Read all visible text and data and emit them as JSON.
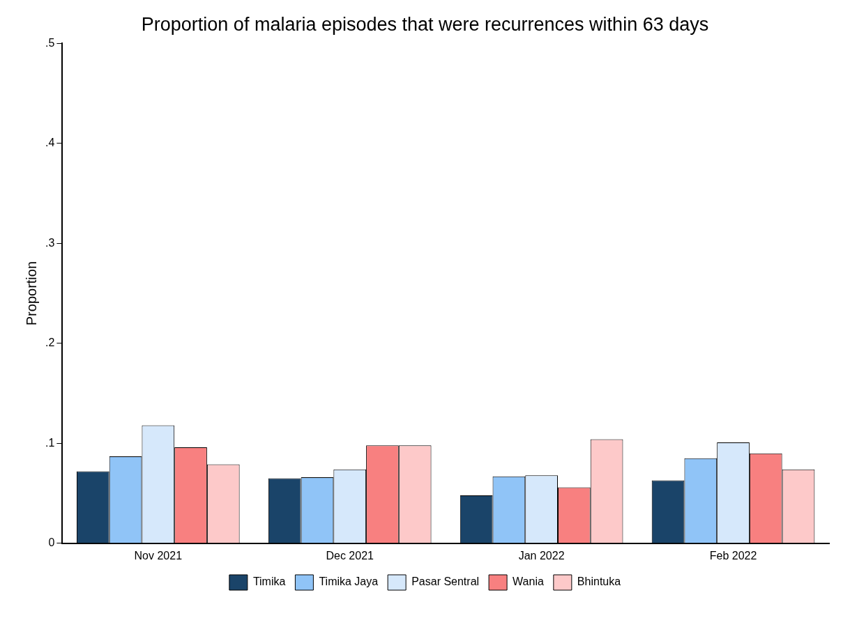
{
  "chart_data": {
    "type": "bar",
    "title": "Proportion of malaria episodes that were recurrences within 63 days",
    "ylabel": "Proportion",
    "categories": [
      "Nov 2021",
      "Dec 2021",
      "Jan 2022",
      "Feb 2022"
    ],
    "series": [
      {
        "name": "Timika",
        "color": "#1a4469",
        "values": [
          0.072,
          0.065,
          0.048,
          0.063
        ]
      },
      {
        "name": "Timika Jaya",
        "color": "#90c4f7",
        "values": [
          0.087,
          0.066,
          0.067,
          0.085
        ]
      },
      {
        "name": "Pasar Sentral",
        "color": "#d6e8fb",
        "values": [
          0.118,
          0.074,
          0.068,
          0.101
        ]
      },
      {
        "name": "Wania",
        "color": "#f88080",
        "values": [
          0.096,
          0.098,
          0.056,
          0.09
        ]
      },
      {
        "name": "Bhintuka",
        "color": "#fdc9c9",
        "values": [
          0.079,
          0.098,
          0.104,
          0.074
        ]
      }
    ],
    "ylim": [
      0,
      0.5
    ],
    "yticks": [
      {
        "value": 0,
        "label": "0"
      },
      {
        "value": 0.1,
        "label": ".1"
      },
      {
        "value": 0.2,
        "label": ".2"
      },
      {
        "value": 0.3,
        "label": ".3"
      },
      {
        "value": 0.4,
        "label": ".4"
      },
      {
        "value": 0.5,
        "label": ".5"
      }
    ],
    "grid": false,
    "legend": "bottom"
  }
}
